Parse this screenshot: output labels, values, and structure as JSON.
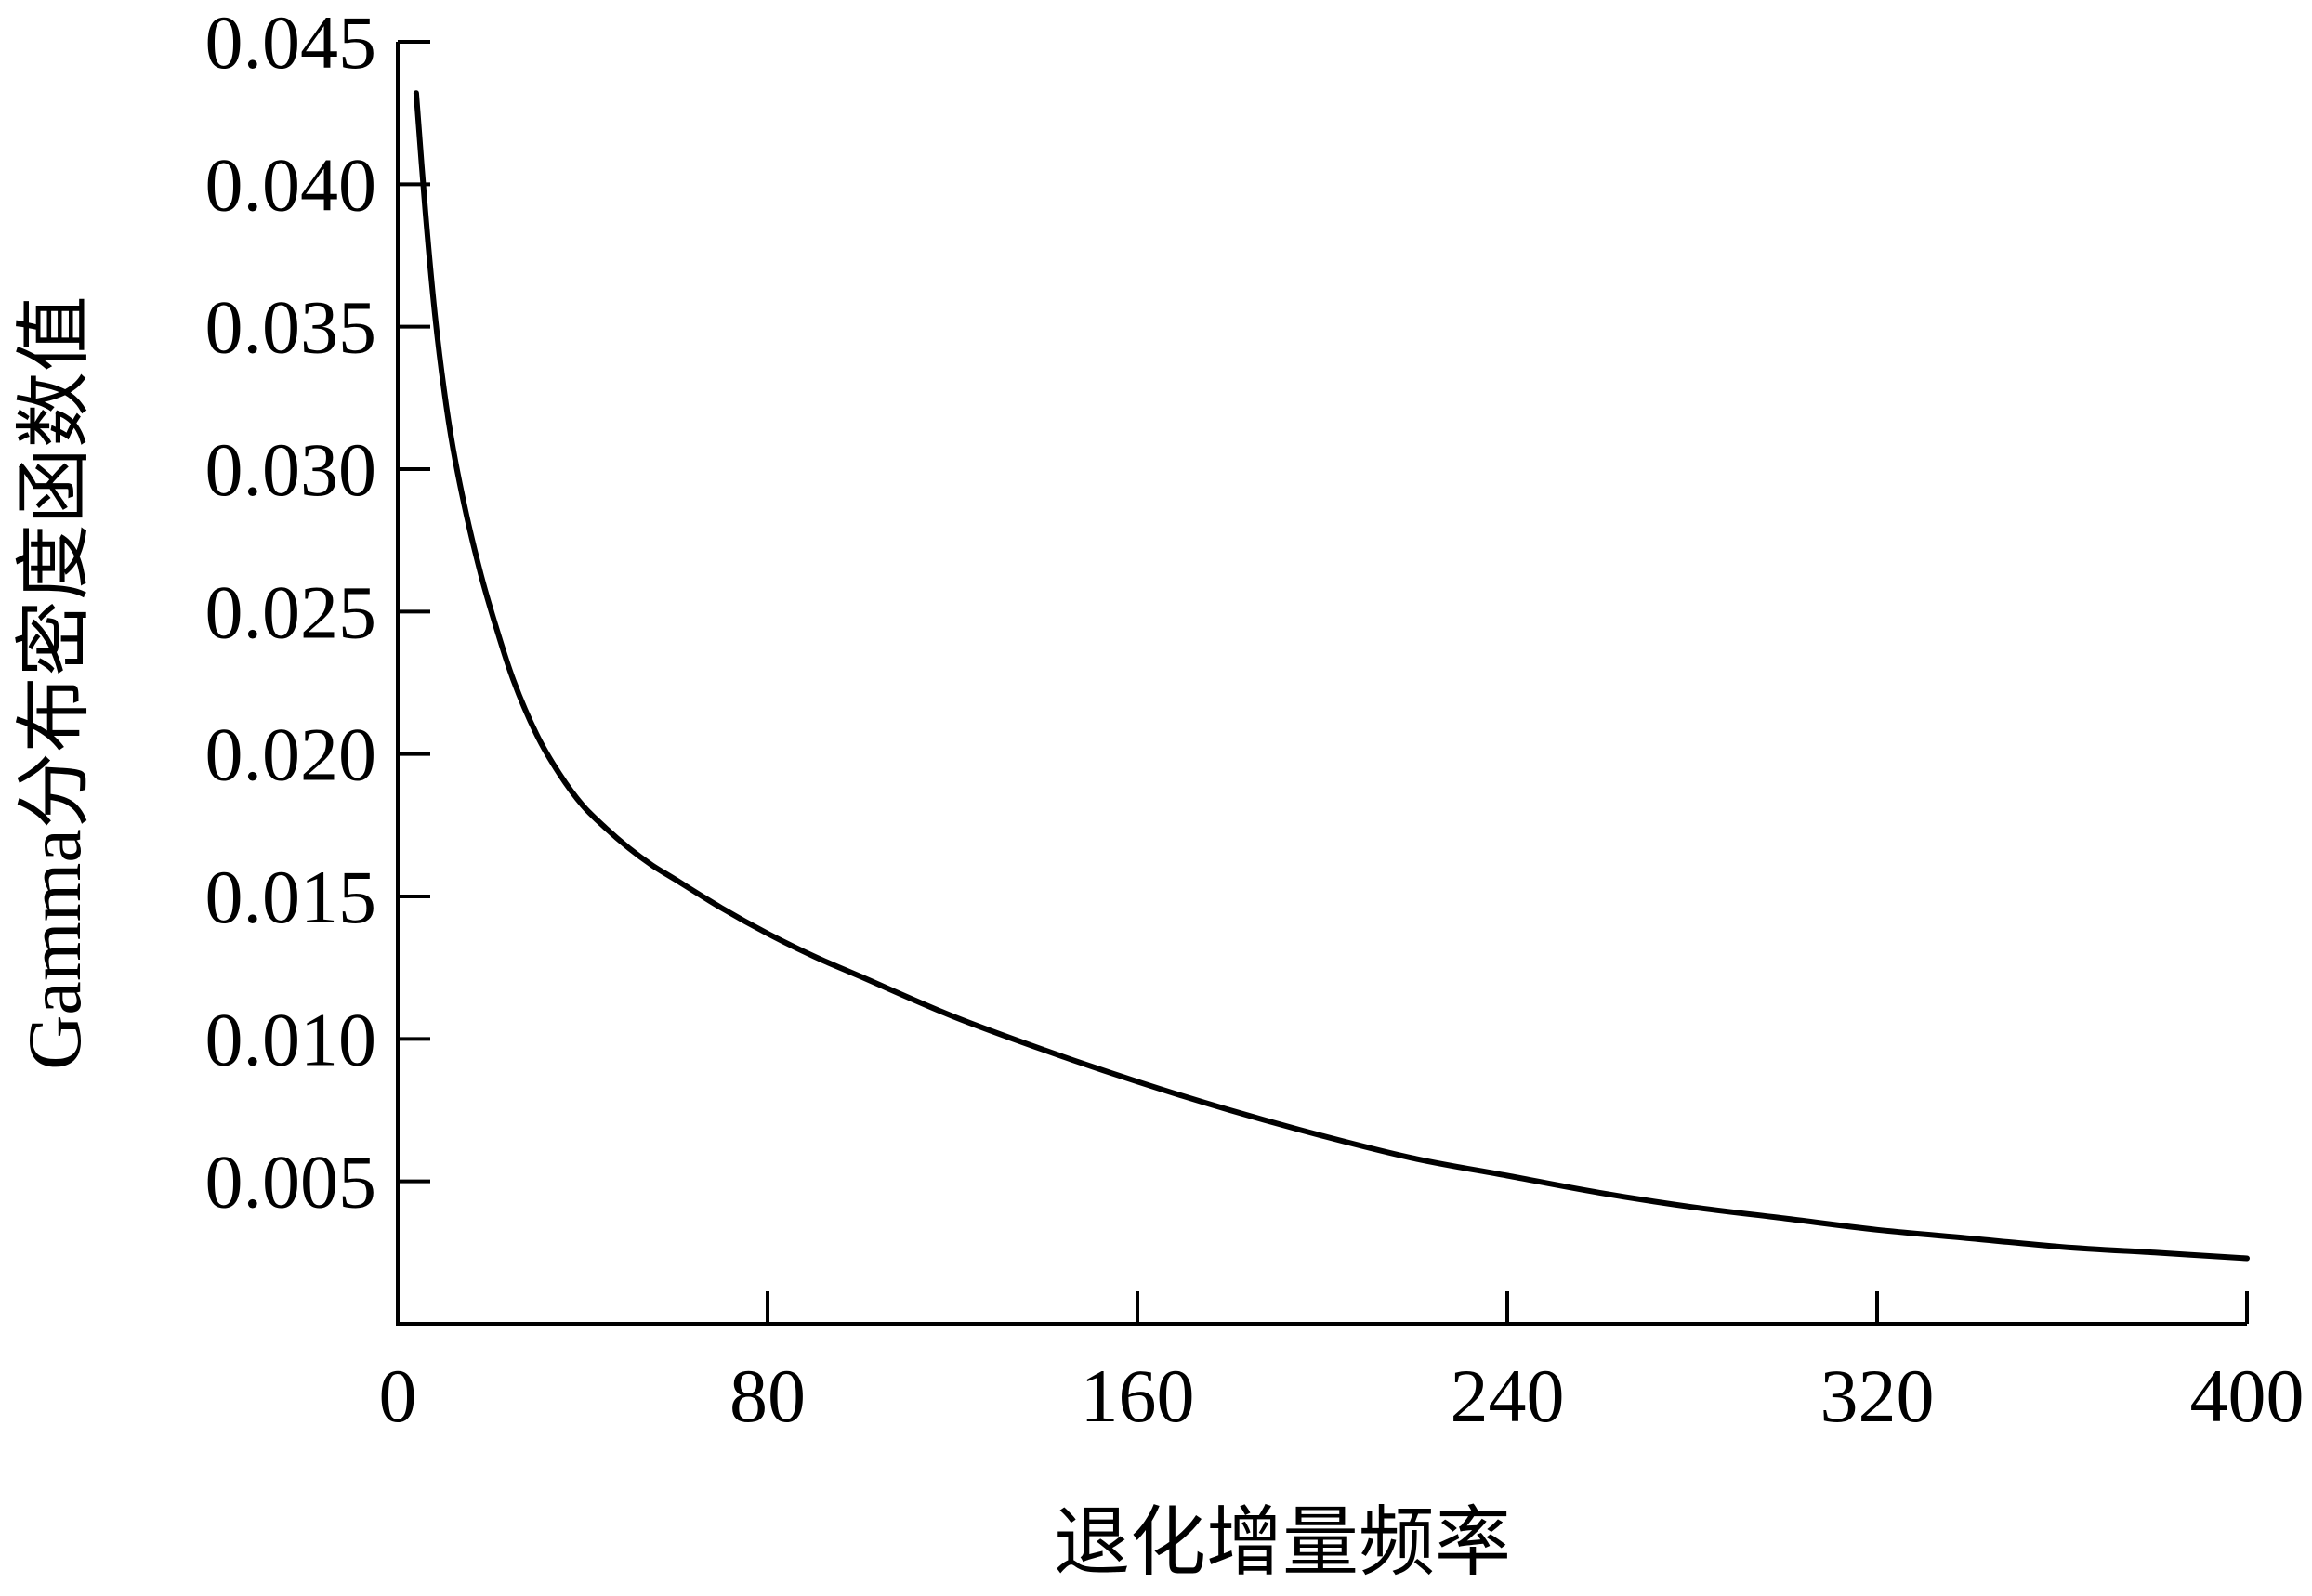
{
  "chart_data": {
    "type": "line",
    "title": "",
    "xlabel": "退化增量频率",
    "ylabel": "Gamma分布密度函数值",
    "xlim": [
      0,
      400
    ],
    "ylim": [
      0,
      0.045
    ],
    "x_ticks": [
      "0",
      "80",
      "160",
      "240",
      "320",
      "400"
    ],
    "y_ticks": [
      "0.005",
      "0.010",
      "0.015",
      "0.020",
      "0.025",
      "0.030",
      "0.035",
      "0.040",
      "0.045"
    ],
    "grid": false,
    "legend": "none",
    "line_color": "#000000",
    "series": [
      {
        "x": [
          4,
          6,
          8,
          10,
          12,
          15,
          18,
          21,
          25,
          30,
          35,
          40,
          45,
          50,
          55,
          60,
          70,
          80,
          90,
          100,
          120,
          140,
          160,
          180,
          200,
          220,
          240,
          260,
          280,
          300,
          320,
          340,
          360,
          380,
          400
        ],
        "values": [
          0.0432,
          0.039,
          0.0355,
          0.0328,
          0.0307,
          0.0283,
          0.0263,
          0.0246,
          0.0226,
          0.0207,
          0.0193,
          0.0182,
          0.0174,
          0.0167,
          0.0161,
          0.0156,
          0.0146,
          0.0137,
          0.0129,
          0.0122,
          0.0108,
          0.0096,
          0.0085,
          0.0075,
          0.0066,
          0.0058,
          0.0052,
          0.0046,
          0.0041,
          0.0037,
          0.0033,
          0.003,
          0.0027,
          0.0025,
          0.0023
        ]
      }
    ]
  }
}
